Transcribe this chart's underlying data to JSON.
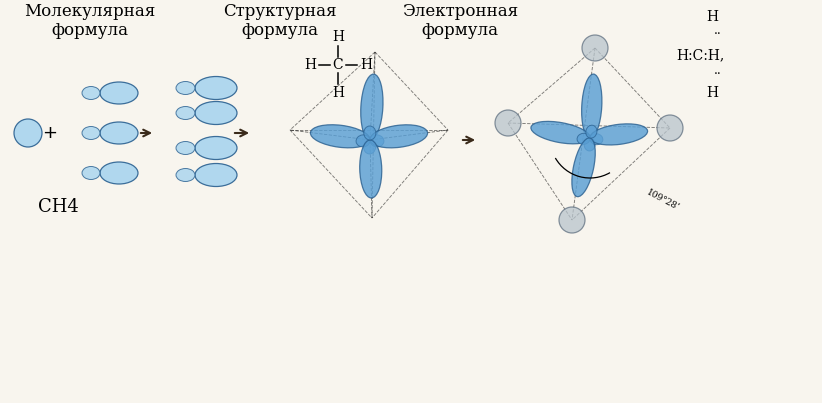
{
  "bg_color": "#ede8dc",
  "top_bg_color": "#f8f5ee",
  "title1": "Молекулярная",
  "title2": "Структурная",
  "title3": "Электронная",
  "sub1": "формула",
  "sub2": "формула",
  "sub3": "формула",
  "ch4_label": "CH4",
  "orbital_blue_fill": "#a8d4ee",
  "orbital_blue_edge": "#2a6090",
  "orbital_blue2_fill": "#5a9fd4",
  "orbital_gray_fill": "#b8c4cc",
  "orbital_gray_edge": "#607080",
  "angle_label": "109°28’",
  "arrow_color": "#3a2a1a"
}
